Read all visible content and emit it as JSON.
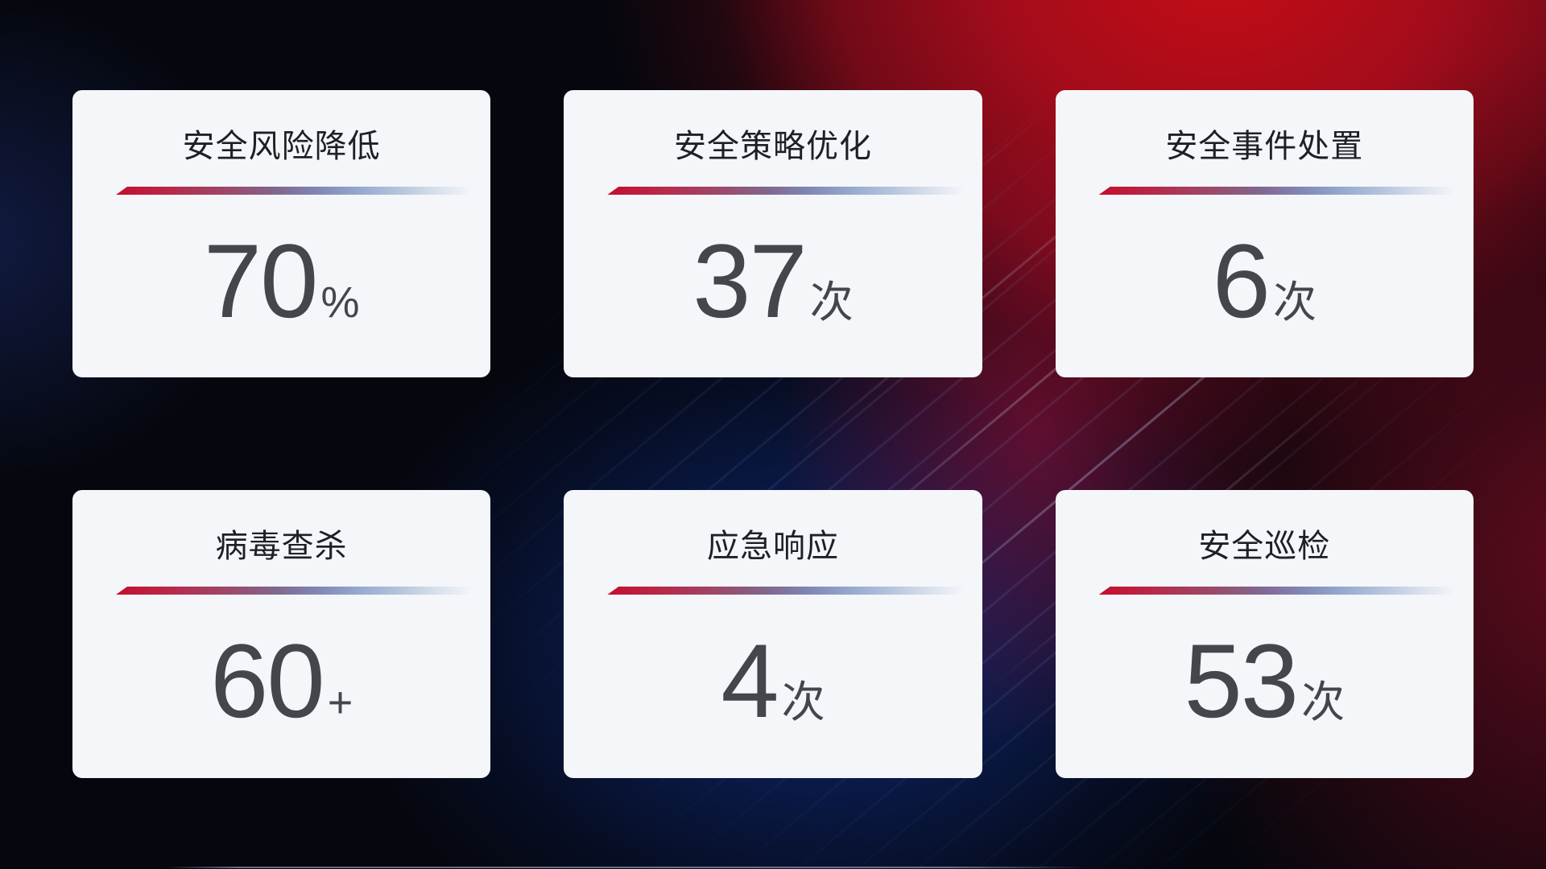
{
  "cards": [
    {
      "title": "安全风险降低",
      "value": "70",
      "unit": "%"
    },
    {
      "title": "安全策略优化",
      "value": "37",
      "unit": "次"
    },
    {
      "title": "安全事件处置",
      "value": "6",
      "unit": "次"
    },
    {
      "title": "病毒查杀",
      "value": "60",
      "unit": "+"
    },
    {
      "title": "应急响应",
      "value": "4",
      "unit": "次"
    },
    {
      "title": "安全巡检",
      "value": "53",
      "unit": "次"
    }
  ],
  "theme": {
    "card_background": "#f4f6fa",
    "title_color": "#1d2025",
    "value_color": "#43464b",
    "divider_red": "#c50e2e",
    "divider_blue": "#94a9ce",
    "background_dark": "#05070e",
    "background_red_glow": "#c60d15",
    "background_blue_glow": "#0e2d82"
  }
}
